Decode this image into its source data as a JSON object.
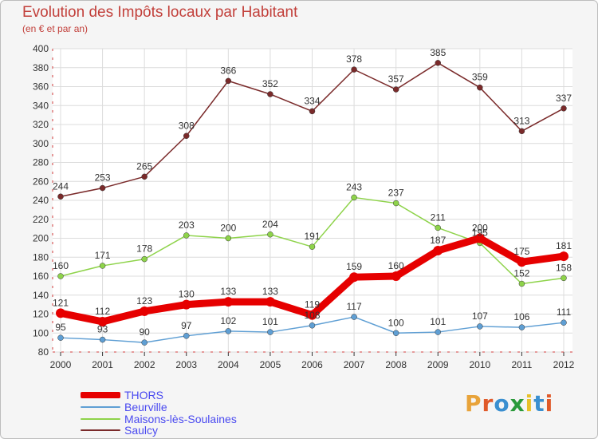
{
  "header": {
    "title": "Evolution des Impôts locaux par Habitant",
    "subtitle": "(en € et par an)"
  },
  "colors": {
    "title": "#c2403b",
    "legend_text": "#4a4af0",
    "axis": "#d23c3c",
    "grid": "#dcdcdc"
  },
  "logo": {
    "letters": [
      {
        "ch": "P",
        "color": "#e8a33a"
      },
      {
        "ch": "r",
        "color": "#e05a2a"
      },
      {
        "ch": "o",
        "color": "#3a8fd0"
      },
      {
        "ch": "x",
        "color": "#2a9a3a"
      },
      {
        "ch": "i",
        "color": "#e8c02a"
      },
      {
        "ch": "t",
        "color": "#3a8fd0"
      },
      {
        "ch": "i",
        "color": "#e05a2a"
      }
    ]
  },
  "chart_data": {
    "type": "line",
    "title": "Evolution des Impôts locaux par Habitant",
    "subtitle": "(en € et par an)",
    "xlabel": "",
    "ylabel": "",
    "x": [
      "2000",
      "2001",
      "2002",
      "2003",
      "2004",
      "2005",
      "2006",
      "2007",
      "2008",
      "2009",
      "2010",
      "2011",
      "2012"
    ],
    "ylim": [
      80,
      400
    ],
    "yticks": [
      80,
      100,
      120,
      140,
      160,
      180,
      200,
      220,
      240,
      260,
      280,
      300,
      320,
      340,
      360,
      380,
      400
    ],
    "grid": true,
    "legend_position": "bottom-left",
    "series": [
      {
        "name": "THORS",
        "color": "#e60000",
        "values": [
          121,
          112,
          123,
          130,
          133,
          133,
          119,
          159,
          160,
          187,
          200,
          175,
          181
        ],
        "labels": [
          "121",
          "112",
          "123",
          "130",
          "133",
          "133",
          "119",
          "159",
          "160",
          "187",
          "200",
          "175",
          "181"
        ]
      },
      {
        "name": "Beurville",
        "color": "#5f9fd4",
        "values": [
          95,
          93,
          90,
          97,
          102,
          101,
          108,
          117,
          100,
          101,
          107,
          106,
          111
        ],
        "labels": [
          "95",
          "93",
          "90",
          "97",
          "102",
          "101",
          "108",
          "117",
          "100",
          "101",
          "107",
          "106",
          "111"
        ]
      },
      {
        "name": "Maisons-lès-Soulaines",
        "color": "#8ed34a",
        "values": [
          160,
          171,
          178,
          203,
          200,
          204,
          191,
          243,
          237,
          211,
          195,
          152,
          158
        ],
        "labels": [
          "160",
          "171",
          "178",
          "203",
          "200",
          "204",
          "191",
          "243",
          "237",
          "211",
          "195",
          "152",
          "158"
        ]
      },
      {
        "name": "Saulcy",
        "color": "#7a2a2a",
        "values": [
          244,
          253,
          265,
          308,
          366,
          352,
          334,
          378,
          357,
          385,
          359,
          313,
          337
        ],
        "labels": [
          "244",
          "253",
          "265",
          "308",
          "366",
          "352",
          "334",
          "378",
          "357",
          "385",
          "359",
          "313",
          "337"
        ]
      }
    ]
  }
}
